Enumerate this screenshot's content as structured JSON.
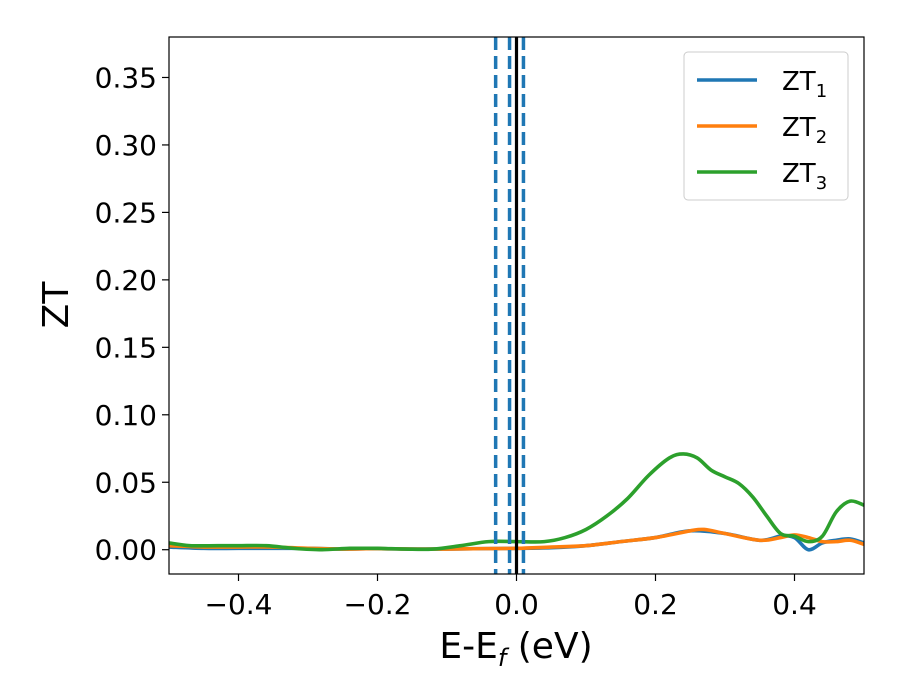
{
  "chart_data": {
    "type": "line",
    "title": "",
    "xlabel": "E-E",
    "xlabel_sub": "f",
    "xlabel_unit": " (eV)",
    "ylabel": "ZT",
    "xlim": [
      -0.5,
      0.5
    ],
    "ylim": [
      -0.018,
      0.38
    ],
    "xticks": [
      -0.4,
      -0.2,
      0.0,
      0.2,
      0.4
    ],
    "xtick_labels": [
      "−0.4",
      "−0.2",
      "0.0",
      "0.2",
      "0.4"
    ],
    "yticks": [
      0.0,
      0.05,
      0.1,
      0.15,
      0.2,
      0.25,
      0.3,
      0.35
    ],
    "ytick_labels": [
      "0.00",
      "0.05",
      "0.10",
      "0.15",
      "0.20",
      "0.25",
      "0.30",
      "0.35"
    ],
    "grid": false,
    "legend_position": "top-right",
    "series": [
      {
        "name": "ZT",
        "sub": "1",
        "color": "#1f77b4",
        "x": [
          -0.5,
          -0.45,
          -0.4,
          -0.35,
          -0.3,
          -0.25,
          -0.2,
          -0.15,
          -0.1,
          -0.05,
          0.0,
          0.05,
          0.1,
          0.15,
          0.2,
          0.25,
          0.3,
          0.35,
          0.38,
          0.4,
          0.42,
          0.44,
          0.46,
          0.48,
          0.5
        ],
        "y": [
          0.002,
          0.001,
          0.001,
          0.001,
          0.001,
          0.0005,
          0.0008,
          0.0005,
          0.0005,
          0.0008,
          0.001,
          0.0015,
          0.003,
          0.006,
          0.009,
          0.014,
          0.012,
          0.007,
          0.01,
          0.009,
          0.0,
          0.005,
          0.007,
          0.008,
          0.005
        ]
      },
      {
        "name": "ZT",
        "sub": "2",
        "color": "#ff7f0e",
        "x": [
          -0.5,
          -0.45,
          -0.4,
          -0.35,
          -0.3,
          -0.25,
          -0.2,
          -0.15,
          -0.1,
          -0.05,
          0.0,
          0.05,
          0.1,
          0.15,
          0.2,
          0.25,
          0.27,
          0.3,
          0.35,
          0.38,
          0.4,
          0.42,
          0.44,
          0.46,
          0.48,
          0.5
        ],
        "y": [
          0.003,
          0.002,
          0.002,
          0.002,
          0.001,
          0.0005,
          0.0008,
          0.0005,
          0.0005,
          0.0008,
          0.001,
          0.002,
          0.003,
          0.006,
          0.009,
          0.014,
          0.015,
          0.012,
          0.007,
          0.009,
          0.011,
          0.009,
          0.006,
          0.006,
          0.007,
          0.004
        ]
      },
      {
        "name": "ZT",
        "sub": "3",
        "color": "#2ca02c",
        "x": [
          -0.5,
          -0.47,
          -0.43,
          -0.4,
          -0.36,
          -0.32,
          -0.28,
          -0.24,
          -0.2,
          -0.16,
          -0.12,
          -0.08,
          -0.04,
          0.0,
          0.04,
          0.07,
          0.1,
          0.13,
          0.16,
          0.19,
          0.22,
          0.24,
          0.26,
          0.28,
          0.3,
          0.32,
          0.34,
          0.36,
          0.38,
          0.4,
          0.42,
          0.44,
          0.46,
          0.48,
          0.5
        ],
        "y": [
          0.005,
          0.003,
          0.003,
          0.003,
          0.003,
          0.001,
          0.0,
          0.001,
          0.001,
          0.0005,
          0.0005,
          0.003,
          0.006,
          0.006,
          0.006,
          0.009,
          0.015,
          0.025,
          0.038,
          0.055,
          0.068,
          0.071,
          0.068,
          0.059,
          0.054,
          0.049,
          0.039,
          0.025,
          0.012,
          0.01,
          0.006,
          0.01,
          0.028,
          0.036,
          0.033
        ]
      }
    ],
    "vlines": [
      {
        "x": -0.03,
        "style": "dashed",
        "color": "#1f77b4"
      },
      {
        "x": -0.01,
        "style": "dashed",
        "color": "#1f77b4"
      },
      {
        "x": 0.01,
        "style": "dashed",
        "color": "#1f77b4"
      },
      {
        "x": 0.0,
        "style": "solid",
        "color": "#000000"
      }
    ]
  }
}
